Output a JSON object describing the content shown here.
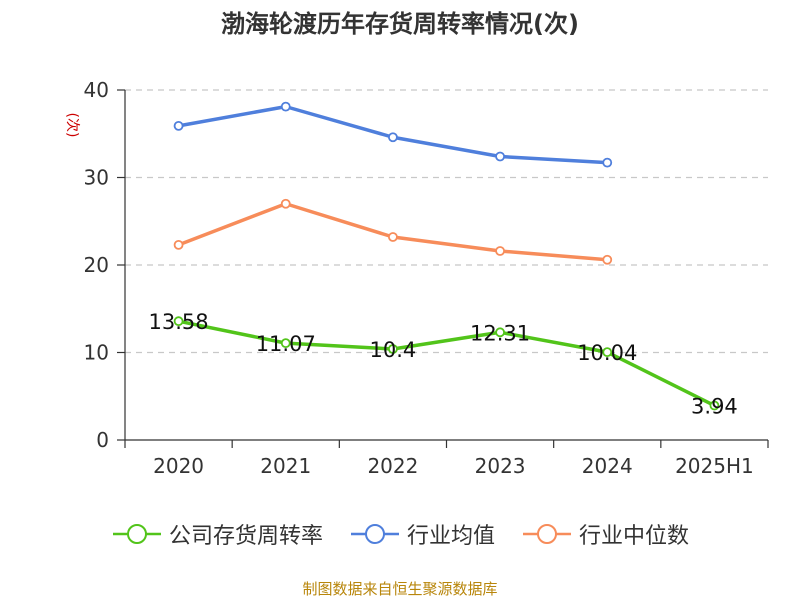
{
  "title": "渤海轮渡历年存货周转率情况(次)",
  "source": "制图数据来自恒生聚源数据库",
  "chart_data": {
    "type": "line",
    "title": "渤海轮渡历年存货周转率情况(次)",
    "ylabel": "(次)",
    "xlabel": "",
    "categories": [
      "2020",
      "2021",
      "2022",
      "2023",
      "2024",
      "2025H1"
    ],
    "ylim": [
      0,
      40
    ],
    "yticks": [
      0,
      10,
      20,
      30,
      40
    ],
    "grid": true,
    "legend_position": "bottom",
    "series": [
      {
        "name": "公司存货周转率",
        "color": "#52c41a",
        "values": [
          13.58,
          11.07,
          10.4,
          12.31,
          10.04,
          3.94
        ],
        "labels": [
          "13.58",
          "11.07",
          "10.4",
          "12.31",
          "10.04",
          "3.94"
        ]
      },
      {
        "name": "行业均值",
        "color": "#4f7fdc",
        "values": [
          35.9,
          38.1,
          34.6,
          32.4,
          31.7,
          null
        ]
      },
      {
        "name": "行业中位数",
        "color": "#f78c5a",
        "values": [
          22.3,
          27.0,
          23.2,
          21.6,
          20.6,
          null
        ]
      }
    ]
  }
}
